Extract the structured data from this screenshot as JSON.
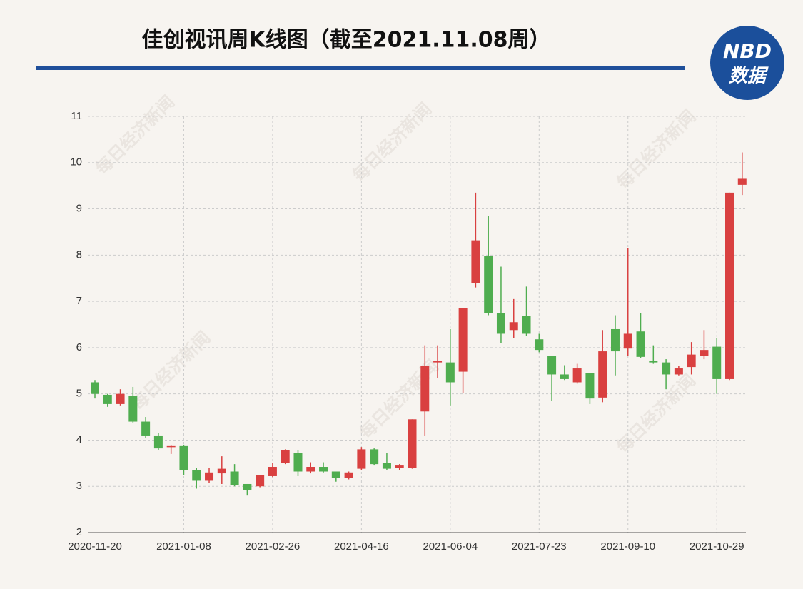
{
  "logo": {
    "line1": "NBD",
    "line2": "数据"
  },
  "watermark": "每日经济新闻",
  "chart_data": {
    "type": "candlestick",
    "title": "佳创视讯周K线图（截至2021.11.08周）",
    "categories": [
      "2020-11-20",
      null,
      null,
      null,
      null,
      null,
      null,
      "2021-01-08",
      null,
      null,
      null,
      null,
      null,
      null,
      "2021-02-26",
      null,
      null,
      null,
      null,
      null,
      null,
      "2021-04-16",
      null,
      null,
      null,
      null,
      null,
      null,
      "2021-06-04",
      null,
      null,
      null,
      null,
      null,
      null,
      "2021-07-23",
      null,
      null,
      null,
      null,
      null,
      null,
      "2021-09-10",
      null,
      null,
      null,
      null,
      null,
      null,
      "2021-10-29",
      null,
      null
    ],
    "open": [
      5.25,
      4.98,
      4.78,
      4.95,
      4.4,
      4.1,
      3.85,
      3.87,
      3.35,
      3.12,
      3.28,
      3.32,
      3.05,
      3.0,
      3.22,
      3.5,
      3.72,
      3.32,
      3.42,
      3.32,
      3.18,
      3.38,
      3.8,
      3.5,
      3.4,
      3.4,
      4.62,
      5.68,
      5.68,
      5.48,
      7.4,
      7.98,
      6.75,
      6.38,
      6.68,
      6.18,
      5.82,
      5.42,
      5.25,
      5.45,
      4.92,
      6.4,
      5.98,
      6.35,
      5.72,
      5.68,
      5.42,
      5.58,
      5.82,
      6.02,
      5.32,
      9.52
    ],
    "high": [
      5.3,
      5.0,
      5.1,
      5.15,
      4.5,
      4.15,
      3.88,
      3.9,
      3.4,
      3.4,
      3.65,
      3.48,
      3.05,
      3.25,
      3.5,
      3.8,
      3.78,
      3.52,
      3.52,
      3.32,
      3.32,
      3.85,
      3.82,
      3.72,
      3.48,
      4.45,
      6.05,
      6.05,
      6.4,
      6.85,
      9.35,
      8.85,
      7.75,
      7.05,
      7.32,
      6.3,
      5.82,
      5.62,
      5.65,
      5.45,
      6.38,
      6.7,
      8.15,
      6.75,
      6.05,
      5.75,
      5.6,
      6.12,
      6.38,
      6.2,
      9.35,
      10.22
    ],
    "low": [
      4.9,
      4.72,
      4.75,
      4.38,
      4.05,
      3.78,
      3.7,
      3.25,
      2.95,
      3.08,
      3.05,
      3.0,
      2.8,
      2.98,
      3.2,
      3.48,
      3.22,
      3.28,
      3.3,
      3.1,
      3.15,
      3.35,
      3.45,
      3.35,
      3.35,
      3.38,
      4.1,
      5.35,
      4.75,
      5.02,
      7.3,
      6.7,
      6.1,
      6.2,
      6.25,
      5.9,
      4.85,
      5.3,
      5.22,
      4.78,
      4.82,
      5.4,
      5.82,
      5.78,
      5.65,
      5.1,
      5.4,
      5.42,
      5.75,
      5.0,
      5.3,
      9.3
    ],
    "close": [
      5.0,
      4.78,
      5.0,
      4.4,
      4.1,
      3.82,
      3.87,
      3.35,
      3.12,
      3.3,
      3.38,
      3.02,
      2.92,
      3.25,
      3.42,
      3.78,
      3.32,
      3.42,
      3.32,
      3.18,
      3.3,
      3.8,
      3.48,
      3.38,
      3.45,
      4.45,
      5.6,
      5.72,
      5.25,
      6.85,
      8.32,
      6.75,
      6.3,
      6.55,
      6.3,
      5.95,
      5.42,
      5.32,
      5.55,
      4.9,
      5.92,
      5.92,
      6.3,
      5.8,
      5.68,
      5.42,
      5.55,
      5.85,
      5.95,
      5.32,
      9.35,
      9.65
    ],
    "up_color": "#d94040",
    "down_color": "#4fad4f",
    "ylim": [
      2,
      11
    ],
    "yticks": [
      2,
      3,
      4,
      5,
      6,
      7,
      8,
      9,
      10,
      11
    ],
    "grid": true
  }
}
